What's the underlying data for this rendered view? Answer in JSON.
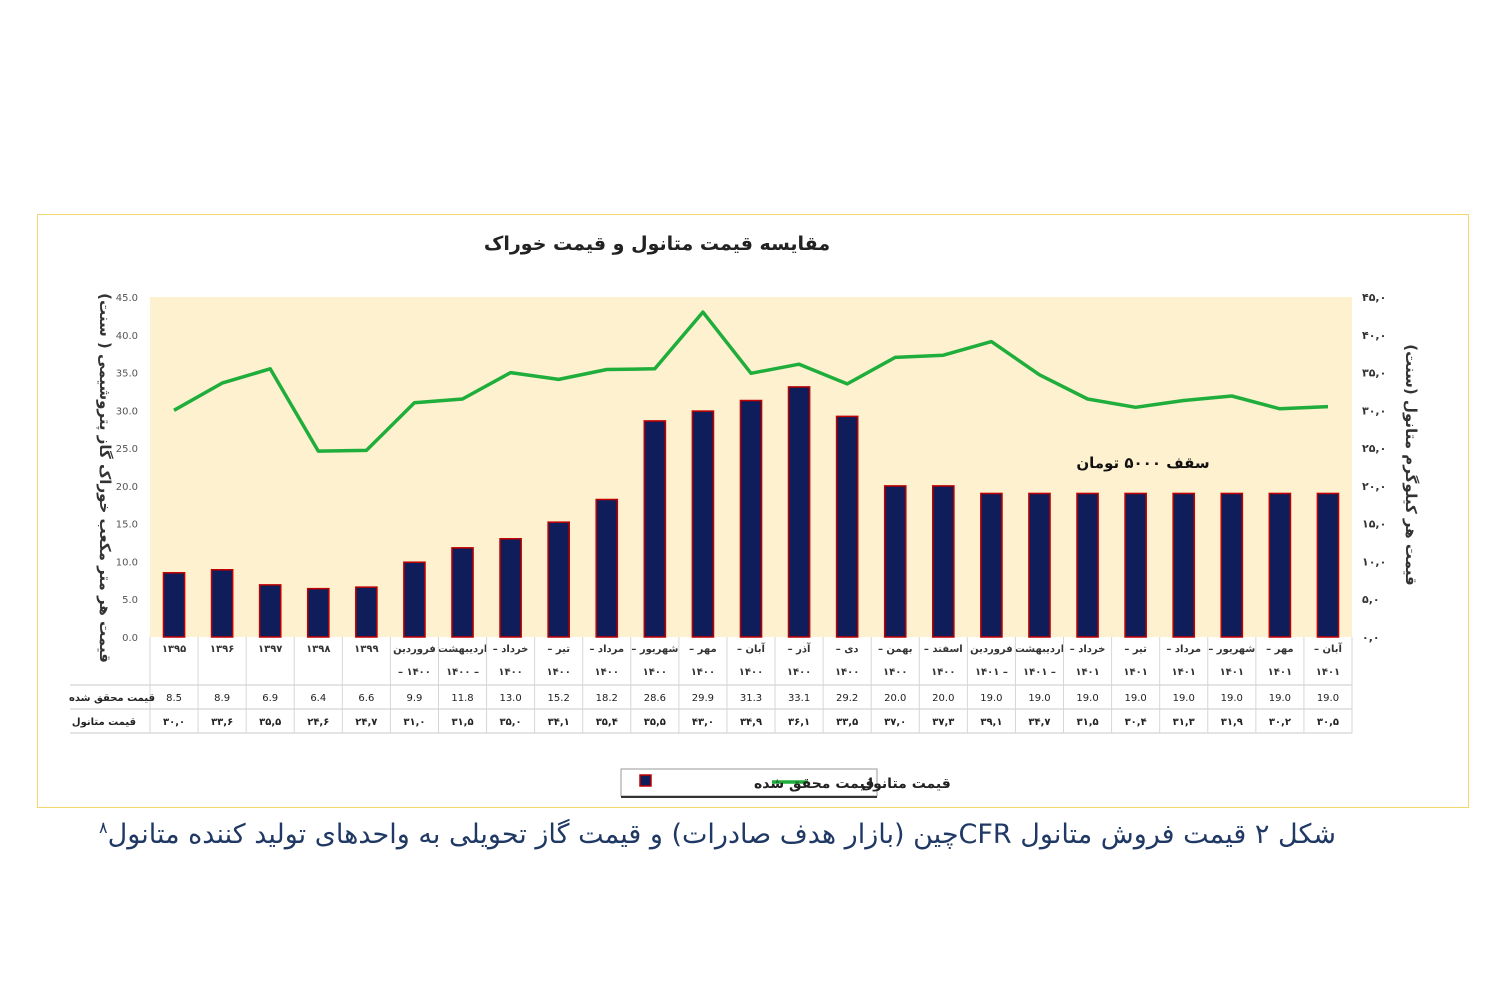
{
  "chart_data": {
    "type": "bar",
    "title": "مقایسه قیمت متانول و قیمت خوراک",
    "ylabel_left": "قیمت هر متر مکعب خوراک گاز پتروشیمی ( سنت)",
    "ylabel_right": "قیمت هر کیلوگرم متانول (سنت)",
    "ylim_left": [
      0,
      45
    ],
    "ylim_right": [
      0,
      45
    ],
    "left_ticks": [
      "0.0",
      "5.0",
      "10.0",
      "15.0",
      "20.0",
      "25.0",
      "30.0",
      "35.0",
      "40.0",
      "45.0"
    ],
    "right_ticks": [
      "۰,۰",
      "۵,۰",
      "۱۰,۰",
      "۱۵,۰",
      "۲۰,۰",
      "۲۵,۰",
      "۳۰,۰",
      "۳۵,۰",
      "۴۰,۰",
      "۴۵,۰"
    ],
    "categories": [
      [
        "۱۳۹۵",
        ""
      ],
      [
        "۱۳۹۶",
        ""
      ],
      [
        "۱۳۹۷",
        ""
      ],
      [
        "۱۳۹۸",
        ""
      ],
      [
        "۱۳۹۹",
        ""
      ],
      [
        "فروردین",
        "۱۴۰۰ –"
      ],
      [
        "اردیبهشت",
        "– ۱۴۰۰"
      ],
      [
        "خرداد –",
        "۱۴۰۰"
      ],
      [
        "تیر –",
        "۱۴۰۰"
      ],
      [
        "مرداد –",
        "۱۴۰۰"
      ],
      [
        "شهریور –",
        "۱۴۰۰"
      ],
      [
        "مهر –",
        "۱۴۰۰"
      ],
      [
        "آبان –",
        "۱۴۰۰"
      ],
      [
        "آذر –",
        "۱۴۰۰"
      ],
      [
        "دی –",
        "۱۴۰۰"
      ],
      [
        "بهمن –",
        "۱۴۰۰"
      ],
      [
        "اسفند –",
        "۱۴۰۰"
      ],
      [
        "فروردین",
        "– ۱۴۰۱"
      ],
      [
        "اردیبهشت",
        "– ۱۴۰۱"
      ],
      [
        "خرداد –",
        "۱۴۰۱"
      ],
      [
        "تیر –",
        "۱۴۰۱"
      ],
      [
        "مرداد –",
        "۱۴۰۱"
      ],
      [
        "شهریور –",
        "۱۴۰۱"
      ],
      [
        "مهر –",
        "۱۴۰۱"
      ],
      [
        "آبان –",
        "۱۴۰۱"
      ]
    ],
    "series": [
      {
        "name": "قیمت محقق شده",
        "type": "bar",
        "axis": "left",
        "color": "#0f1d5a",
        "edge_color": "#c00000",
        "values": [
          8.5,
          8.9,
          6.9,
          6.4,
          6.6,
          9.9,
          11.8,
          13.0,
          15.2,
          18.2,
          28.6,
          29.9,
          31.3,
          33.1,
          29.2,
          20.0,
          20.0,
          19.0,
          19.0,
          19.0,
          19.0,
          19.0,
          19.0,
          19.0,
          19.0
        ],
        "labels": [
          "8.5",
          "8.9",
          "6.9",
          "6.4",
          "6.6",
          "9.9",
          "11.8",
          "13.0",
          "15.2",
          "18.2",
          "28.6",
          "29.9",
          "31.3",
          "33.1",
          "29.2",
          "20.0",
          "20.0",
          "19.0",
          "19.0",
          "19.0",
          "19.0",
          "19.0",
          "19.0",
          "19.0",
          "19.0"
        ]
      },
      {
        "name": "قیمت متانول",
        "type": "line",
        "axis": "right",
        "color": "#1fae3b",
        "values": [
          30.0,
          33.6,
          35.5,
          24.6,
          24.7,
          31.0,
          31.5,
          35.0,
          34.1,
          35.4,
          35.5,
          43.0,
          34.9,
          36.1,
          33.5,
          37.0,
          37.3,
          39.1,
          34.7,
          31.5,
          30.4,
          31.3,
          31.9,
          30.2,
          30.5
        ],
        "labels": [
          "۳۰,۰",
          "۳۳,۶",
          "۳۵,۵",
          "۲۴,۶",
          "۲۴,۷",
          "۳۱,۰",
          "۳۱,۵",
          "۳۵,۰",
          "۳۴,۱",
          "۳۵,۴",
          "۳۵,۵",
          "۴۳,۰",
          "۳۴,۹",
          "۳۶,۱",
          "۳۳,۵",
          "۳۷,۰",
          "۳۷,۳",
          "۳۹,۱",
          "۳۴,۷",
          "۳۱,۵",
          "۳۰,۴",
          "۳۱,۳",
          "۳۱,۹",
          "۳۰,۲",
          "۳۰,۵"
        ]
      }
    ],
    "annotation": "سقف ۵۰۰۰ تومان",
    "grid": false,
    "legend": "bottom",
    "plot_background": "#fdf1cf"
  },
  "caption": {
    "text": "شکل ۲ قیمت فروش متانول CFRچین (بازار هدف صادرات) و قیمت گاز تحویلی به واحدهای تولید کننده متانول",
    "footnote": "۸"
  }
}
